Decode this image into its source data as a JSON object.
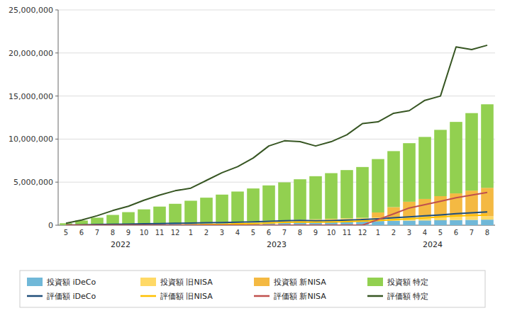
{
  "chart_data": {
    "type": "bar",
    "stacked": true,
    "categories": [
      "5",
      "6",
      "7",
      "8",
      "9",
      "10",
      "11",
      "12",
      "1",
      "2",
      "3",
      "4",
      "5",
      "6",
      "7",
      "8",
      "9",
      "10",
      "11",
      "12",
      "1",
      "2",
      "3",
      "4",
      "5",
      "6",
      "7",
      "8"
    ],
    "annotations": [
      {
        "text": "2022",
        "start": 0,
        "end": 7
      },
      {
        "text": "2023",
        "start": 8,
        "end": 19
      },
      {
        "text": "2024",
        "start": 20,
        "end": 27
      }
    ],
    "series": [
      {
        "name": "投資額 iDeCo",
        "type": "bar",
        "color": "#70b8d8",
        "values": [
          23000,
          46000,
          69000,
          92000,
          115000,
          138000,
          161000,
          184000,
          207000,
          230000,
          253000,
          276000,
          299000,
          322000,
          345000,
          368000,
          391000,
          414000,
          437000,
          460000,
          483000,
          506000,
          529000,
          552000,
          575000,
          598000,
          621000,
          644000
        ]
      },
      {
        "name": "投資額 旧NISA",
        "type": "bar",
        "color": "#ffd966",
        "values": [
          0,
          0,
          0,
          0,
          0,
          0,
          0,
          0,
          33000,
          66000,
          99000,
          132000,
          165000,
          198000,
          231000,
          264000,
          297000,
          330000,
          363000,
          396000,
          396000,
          396000,
          396000,
          396000,
          396000,
          396000,
          396000,
          396000
        ]
      },
      {
        "name": "投資額 新NISA",
        "type": "bar",
        "color": "#f4b942",
        "values": [
          0,
          0,
          0,
          0,
          0,
          0,
          0,
          0,
          0,
          0,
          0,
          0,
          0,
          0,
          0,
          0,
          0,
          0,
          0,
          0,
          600000,
          1200000,
          1800000,
          2100000,
          2400000,
          2700000,
          3000000,
          3300000
        ]
      },
      {
        "name": "投資額 特定",
        "type": "bar",
        "color": "#92d050",
        "values": [
          200000,
          500000,
          800000,
          1100000,
          1400000,
          1700000,
          2000000,
          2300000,
          2600000,
          2900000,
          3200000,
          3500000,
          3800000,
          4100000,
          4400000,
          4700000,
          5000000,
          5300000,
          5600000,
          5900000,
          6200000,
          6500000,
          6800000,
          7200000,
          7700000,
          8300000,
          9000000,
          9700000
        ]
      },
      {
        "name": "評価額 iDeCo",
        "type": "line",
        "color": "#1f4e79",
        "values": [
          24000,
          50000,
          78000,
          105000,
          130000,
          160000,
          190000,
          220000,
          250000,
          280000,
          310000,
          350000,
          390000,
          450000,
          520000,
          560000,
          520000,
          540000,
          590000,
          650000,
          740000,
          860000,
          970000,
          1080000,
          1200000,
          1330000,
          1430000,
          1550000
        ]
      },
      {
        "name": "評価額 旧NISA",
        "type": "line",
        "color": "#ffc000",
        "values": [
          0,
          0,
          0,
          0,
          0,
          0,
          0,
          0,
          35000,
          72000,
          112000,
          155000,
          195000,
          255000,
          330000,
          380000,
          350000,
          370000,
          415000,
          470000,
          540000,
          640000,
          730000,
          840000,
          960000,
          1060000,
          1130000,
          1180000
        ]
      },
      {
        "name": "評価額 新NISA",
        "type": "line",
        "color": "#c0504d",
        "values": [
          0,
          0,
          0,
          0,
          0,
          0,
          0,
          0,
          0,
          0,
          0,
          0,
          0,
          0,
          0,
          0,
          0,
          0,
          0,
          0,
          650000,
          1320000,
          2000000,
          2380000,
          2780000,
          3180000,
          3500000,
          3800000
        ]
      },
      {
        "name": "評価額 特定",
        "type": "line",
        "color": "#375623",
        "values": [
          220000,
          600000,
          1100000,
          1700000,
          2200000,
          2900000,
          3500000,
          4000000,
          4300000,
          5200000,
          6100000,
          6800000,
          7800000,
          9200000,
          9800000,
          9700000,
          9200000,
          9700000,
          10500000,
          11800000,
          12000000,
          13000000,
          13300000,
          14500000,
          15000000,
          20700000,
          20400000,
          20900000
        ]
      }
    ],
    "ylim": [
      0,
      25000000
    ],
    "yticks": [
      0,
      {
        "value": 5000000,
        "label": "5,000,000"
      },
      {
        "value": 10000000,
        "label": "10,000,000"
      },
      {
        "value": 15000000,
        "label": "15,000,000"
      },
      {
        "value": 20000000,
        "label": "20,000,000"
      },
      {
        "value": 25000000,
        "label": "25,000,000"
      }
    ],
    "grid": true,
    "legend": "bottom"
  }
}
